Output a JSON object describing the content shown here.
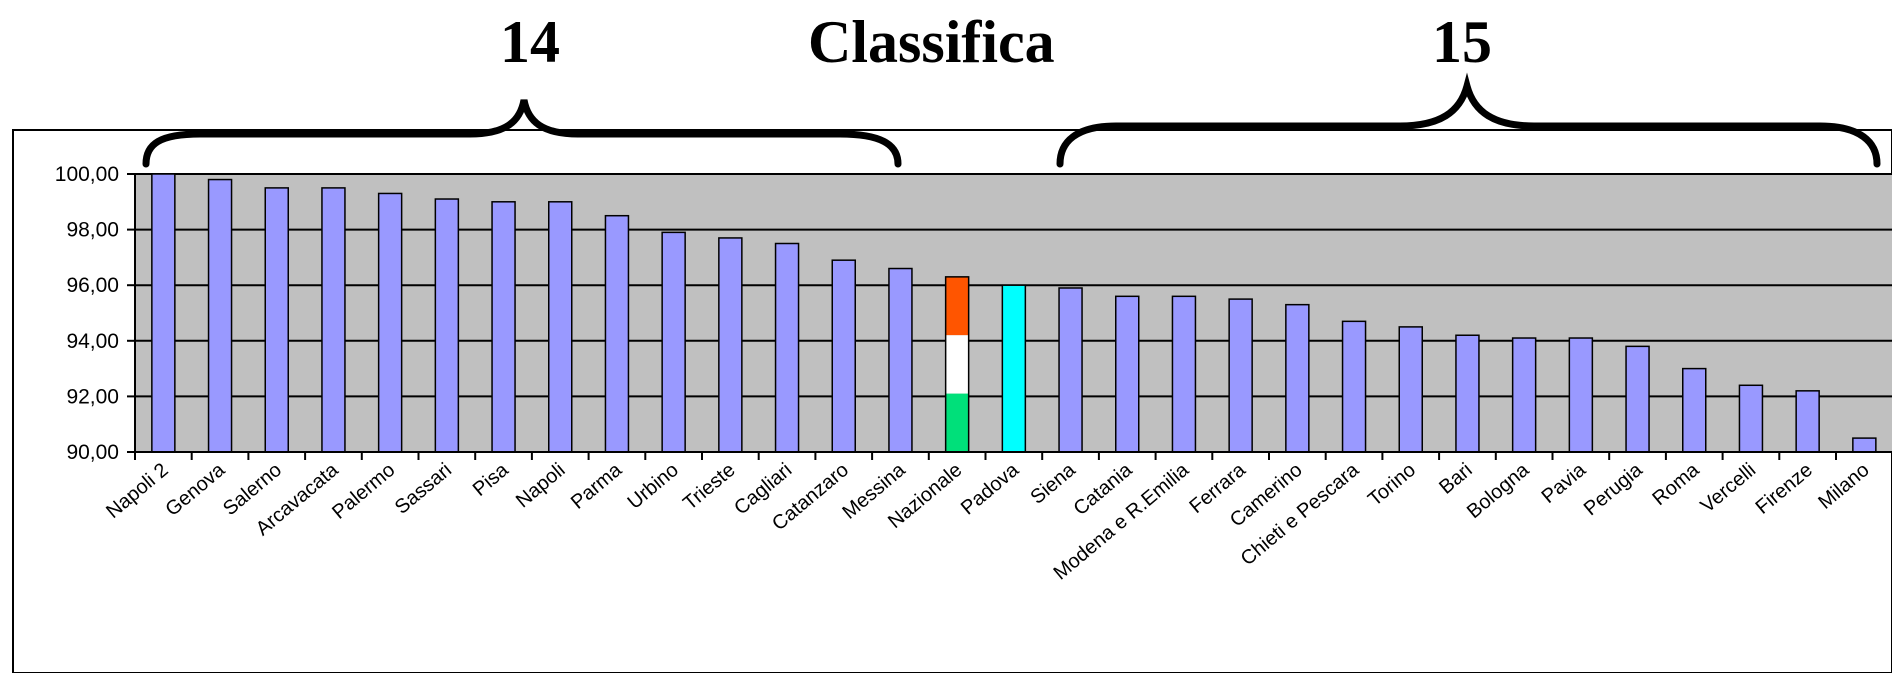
{
  "headings": {
    "left_group_count": "14",
    "title": "Classifica",
    "right_group_count": "15"
  },
  "colors": {
    "plot_background": "#c0c0c0",
    "bar_default": "#9999ff",
    "bar_highlight": "#00ffff",
    "italian_flag": [
      "#ff5500",
      "#ffffff",
      "#00e07a"
    ],
    "gridline": "#000000"
  },
  "chart_data": {
    "type": "bar",
    "title": "Classifica",
    "xlabel": "",
    "ylabel": "",
    "ylim": [
      90,
      100
    ],
    "y_ticks": [
      "90,00",
      "92,00",
      "94,00",
      "96,00",
      "98,00",
      "100,00"
    ],
    "grid": true,
    "legend": "none",
    "categories": [
      "Napoli 2",
      "Genova",
      "Salerno",
      "Arcavacata",
      "Palermo",
      "Sassari",
      "Pisa",
      "Napoli",
      "Parma",
      "Urbino",
      "Trieste",
      "Cagliari",
      "Catanzaro",
      "Messina",
      "Nazionale",
      "Padova",
      "Siena",
      "Catania",
      "Modena e R.Emilia",
      "Ferrara",
      "Camerino",
      "Chieti e Pescara",
      "Torino",
      "Bari",
      "Bologna",
      "Pavia",
      "Perugia",
      "Roma",
      "Vercelli",
      "Firenze",
      "Milano"
    ],
    "values": [
      100.0,
      99.8,
      99.5,
      99.5,
      99.3,
      99.1,
      99.0,
      99.0,
      98.5,
      97.9,
      97.7,
      97.5,
      96.9,
      96.6,
      96.3,
      96.0,
      95.9,
      95.6,
      95.6,
      95.5,
      95.3,
      94.7,
      94.5,
      94.2,
      94.1,
      94.1,
      93.8,
      93.0,
      92.4,
      92.2,
      90.5
    ],
    "bar_styles": [
      "default",
      "default",
      "default",
      "default",
      "default",
      "default",
      "default",
      "default",
      "default",
      "default",
      "default",
      "default",
      "default",
      "default",
      "flag",
      "highlight",
      "default",
      "default",
      "default",
      "default",
      "default",
      "default",
      "default",
      "default",
      "default",
      "default",
      "default",
      "default",
      "default",
      "default",
      "default"
    ]
  }
}
